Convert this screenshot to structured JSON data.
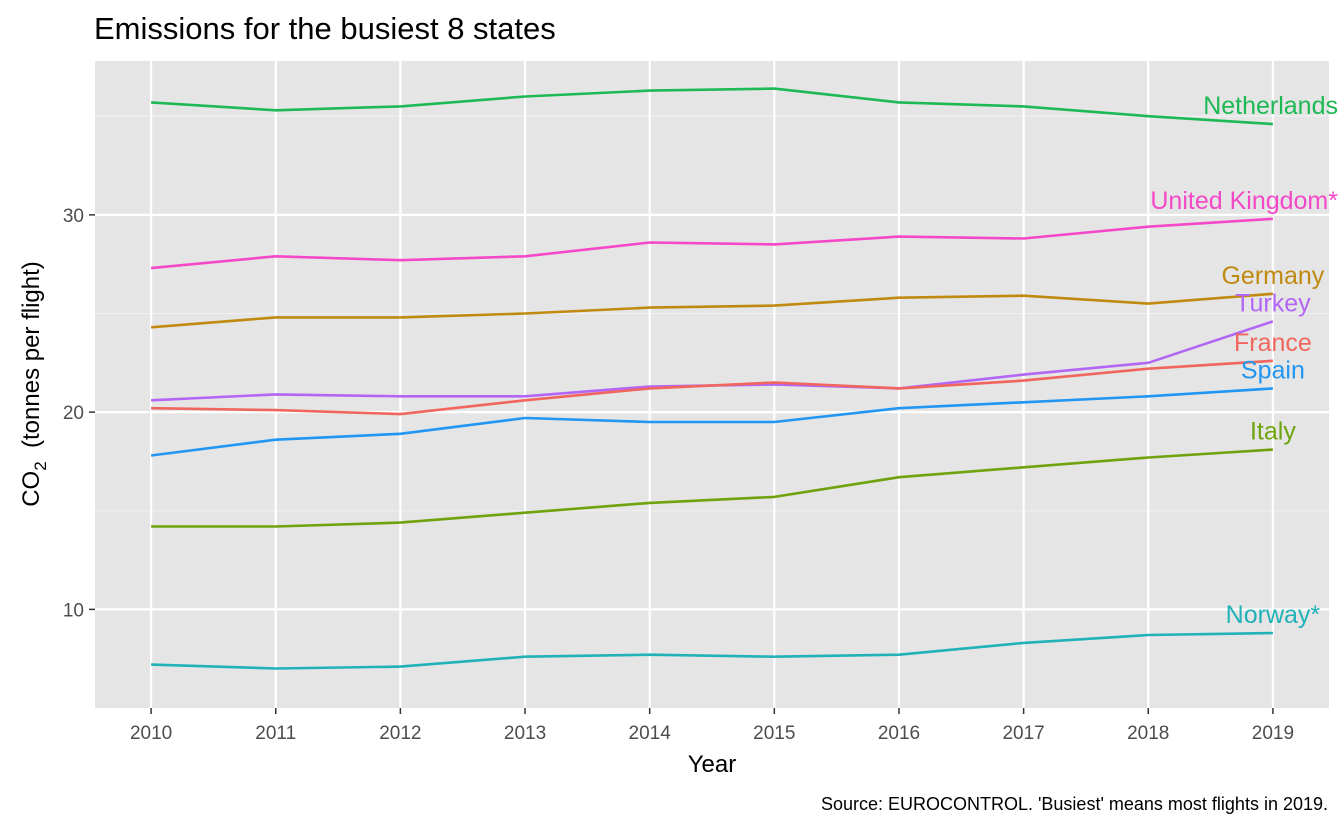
{
  "chart_data": {
    "type": "line",
    "title": "Emissions for the busiest 8 states",
    "xlabel": "Year",
    "ylabel_main": "CO",
    "ylabel_sub": "2",
    "ylabel_rest": "  (tonnes per flight)",
    "caption": "Source: EUROCONTROL. 'Busiest' means most flights in 2019.",
    "x": [
      2010,
      2011,
      2012,
      2013,
      2014,
      2015,
      2016,
      2017,
      2018,
      2019
    ],
    "x_ticks": [
      "2010",
      "2011",
      "2012",
      "2013",
      "2014",
      "2015",
      "2016",
      "2017",
      "2018",
      "2019"
    ],
    "y_ticks": [
      "10",
      "20",
      "30"
    ],
    "xlim": [
      2009.55,
      2019.45
    ],
    "ylim": [
      5.0,
      37.8
    ],
    "grid": true,
    "legend": "none (direct labels at line ends)",
    "panel_background": "#e5e5e5",
    "series": [
      {
        "name": "Netherlands",
        "color": "#1db954",
        "values": [
          35.7,
          35.3,
          35.5,
          36.0,
          36.3,
          36.4,
          35.7,
          35.5,
          35.0,
          34.6
        ]
      },
      {
        "name": "United Kingdom*",
        "color": "#f548c8",
        "values": [
          27.3,
          27.9,
          27.7,
          27.9,
          28.6,
          28.5,
          28.9,
          28.8,
          29.4,
          29.8
        ]
      },
      {
        "name": "Germany",
        "color": "#c08a10",
        "values": [
          24.3,
          24.8,
          24.8,
          25.0,
          25.3,
          25.4,
          25.8,
          25.9,
          25.5,
          26.0
        ]
      },
      {
        "name": "Turkey",
        "color": "#b366f5",
        "values": [
          20.6,
          20.9,
          20.8,
          20.8,
          21.3,
          21.4,
          21.2,
          21.9,
          22.5,
          24.6
        ]
      },
      {
        "name": "France",
        "color": "#f0665e",
        "values": [
          20.2,
          20.1,
          19.9,
          20.6,
          21.2,
          21.5,
          21.2,
          21.6,
          22.2,
          22.6
        ]
      },
      {
        "name": "Spain",
        "color": "#2196f3",
        "values": [
          17.8,
          18.6,
          18.9,
          19.7,
          19.5,
          19.5,
          20.2,
          20.5,
          20.8,
          21.2
        ]
      },
      {
        "name": "Italy",
        "color": "#6fa30e",
        "values": [
          14.2,
          14.2,
          14.4,
          14.9,
          15.4,
          15.7,
          16.7,
          17.2,
          17.7,
          18.1
        ]
      },
      {
        "name": "Norway*",
        "color": "#21b2b7",
        "values": [
          7.2,
          7.0,
          7.1,
          7.6,
          7.7,
          7.6,
          7.7,
          8.3,
          8.7,
          8.8
        ]
      }
    ]
  }
}
